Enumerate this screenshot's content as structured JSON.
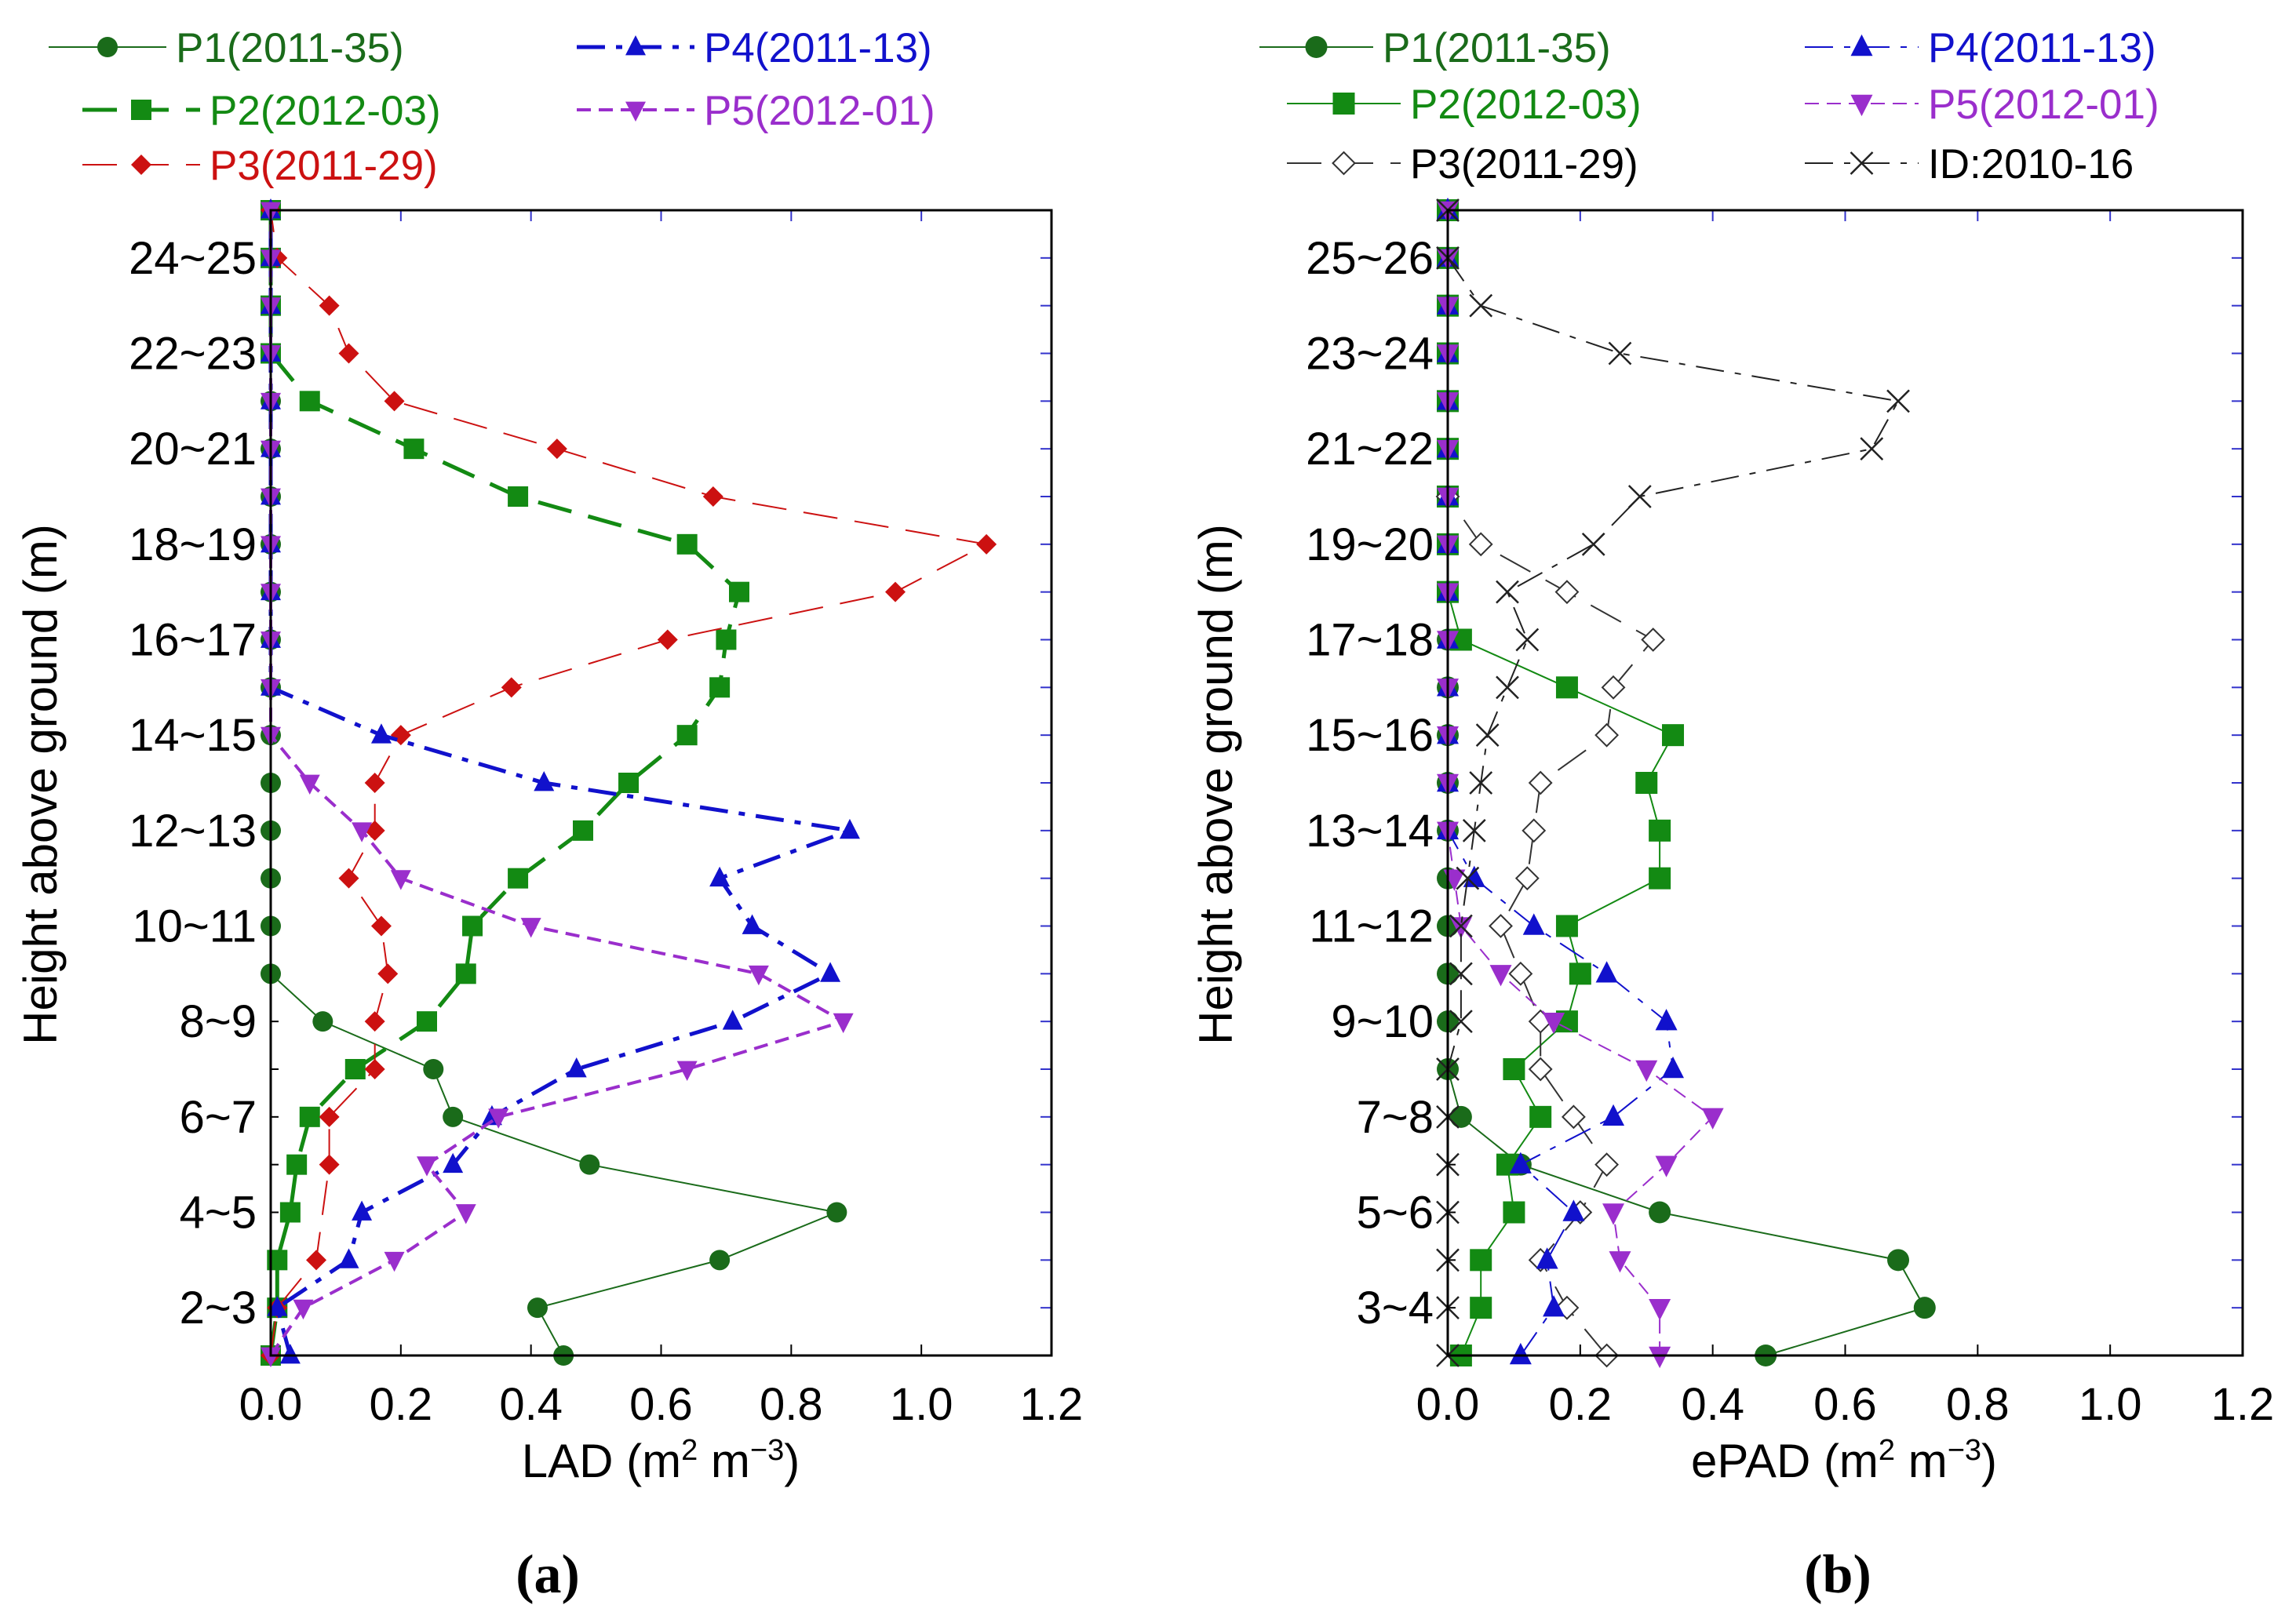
{
  "figure": {
    "panel_a_label": "(a)",
    "panel_b_label": "(b)"
  },
  "chart_data": [
    {
      "type": "line",
      "panel": "a",
      "title": "",
      "xlabel": "LAD (m",
      "xlabel_sup1": "2",
      "xlabel_mid": " m",
      "xlabel_sup2": "−3",
      "xlabel_end": ")",
      "ylabel": "Height above ground (m)",
      "xlim": [
        0,
        1.2
      ],
      "ylim": [
        1,
        25
      ],
      "x_ticks": [
        0,
        0.2,
        0.4,
        0.6,
        0.8,
        1.0,
        1.2
      ],
      "x_tick_labels": [
        "0.0",
        "0.2",
        "0.4",
        "0.6",
        "0.8",
        "1.0",
        "1.2"
      ],
      "y_ticks": [
        2,
        4,
        6,
        8,
        10,
        12,
        14,
        16,
        18,
        20,
        22,
        24
      ],
      "y_tick_labels": [
        "2~3",
        "4~5",
        "6~7",
        "8~9",
        "10~11",
        "12~13",
        "14~15",
        "16~17",
        "18~19",
        "20~21",
        "22~23",
        "24~25"
      ],
      "legend_position": "top",
      "series": [
        {
          "name": "P1(2011-35)",
          "color": "#1a6b1a",
          "marker": "circle",
          "dash": "solid",
          "width": 2,
          "x": [
            0.45,
            0.41,
            0.69,
            0.87,
            0.49,
            0.28,
            0.25,
            0.08,
            0,
            0,
            0,
            0,
            0,
            0,
            0,
            0,
            0,
            0,
            0,
            0,
            0,
            0,
            0,
            0,
            0
          ],
          "y": [
            1,
            2,
            3,
            4,
            5,
            6,
            7,
            8,
            9,
            10,
            11,
            12,
            13,
            14,
            15,
            16,
            17,
            18,
            19,
            20,
            21,
            22,
            23,
            24,
            25
          ]
        },
        {
          "name": "P2(2012-03)",
          "color": "#138a13",
          "marker": "square",
          "dash": "longdash",
          "width": 5,
          "x": [
            0,
            0.01,
            0.01,
            0.03,
            0.04,
            0.06,
            0.13,
            0.24,
            0.3,
            0.31,
            0.38,
            0.48,
            0.55,
            0.64,
            0.69,
            0.7,
            0.72,
            0.64,
            0.38,
            0.22,
            0.06,
            0,
            0,
            0,
            0
          ],
          "y": [
            1,
            2,
            3,
            4,
            5,
            6,
            7,
            8,
            9,
            10,
            11,
            12,
            13,
            14,
            15,
            16,
            17,
            18,
            19,
            20,
            21,
            22,
            23,
            24,
            25
          ]
        },
        {
          "name": "P3(2011-29)",
          "color": "#cc1111",
          "marker": "diamond",
          "dash": "longdash",
          "width": 2,
          "x": [
            0,
            0.01,
            0.07,
            0.09,
            0.09,
            0.16,
            0.16,
            0.18,
            0.17,
            0.12,
            0.16,
            0.16,
            0.2,
            0.37,
            0.61,
            0.96,
            1.1,
            0.68,
            0.44,
            0.19,
            0.12,
            0.09,
            0.01,
            0
          ],
          "y": [
            1,
            2,
            3,
            5,
            6,
            7,
            8,
            9,
            10,
            11,
            12,
            13,
            14,
            15,
            16,
            17,
            18,
            19,
            20,
            21,
            22,
            23,
            24,
            25
          ]
        },
        {
          "name": "P4(2011-13)",
          "color": "#1111cc",
          "marker": "triangle-up",
          "dash": "dashdot",
          "width": 5,
          "x": [
            0.03,
            0.01,
            0.12,
            0.14,
            0.28,
            0.34,
            0.47,
            0.71,
            0.86,
            0.74,
            0.69,
            0.89,
            0.42,
            0.17,
            0,
            0,
            0,
            0,
            0,
            0,
            0,
            0,
            0,
            0,
            0
          ],
          "y": [
            1,
            2,
            3,
            4,
            5,
            6,
            7,
            8,
            9,
            10,
            11,
            12,
            13,
            14,
            15,
            16,
            17,
            18,
            19,
            20,
            21,
            22,
            23,
            24,
            25
          ]
        },
        {
          "name": "P5(2012-01)",
          "color": "#9a2ecc",
          "marker": "triangle-down",
          "dash": "shortdash",
          "width": 4,
          "x": [
            0,
            0.05,
            0.19,
            0.3,
            0.24,
            0.35,
            0.64,
            0.88,
            0.75,
            0.4,
            0.2,
            0.14,
            0.06,
            0,
            0,
            0,
            0,
            0,
            0,
            0,
            0,
            0,
            0,
            0,
            0
          ],
          "y": [
            1,
            2,
            3,
            4,
            5,
            6,
            7,
            8,
            9,
            10,
            11,
            12,
            13,
            14,
            15,
            16,
            17,
            18,
            19,
            20,
            21,
            22,
            23,
            24,
            25
          ]
        }
      ]
    },
    {
      "type": "line",
      "panel": "b",
      "title": "",
      "xlabel": "ePAD (m",
      "xlabel_sup1": "2",
      "xlabel_mid": " m",
      "xlabel_sup2": "−3",
      "xlabel_end": ")",
      "ylabel": "Height above ground (m)",
      "xlim": [
        0,
        1.2
      ],
      "ylim": [
        2,
        26
      ],
      "x_ticks": [
        0,
        0.2,
        0.4,
        0.6,
        0.8,
        1.0,
        1.2
      ],
      "x_tick_labels": [
        "0.0",
        "0.2",
        "0.4",
        "0.6",
        "0.8",
        "1.0",
        "1.2"
      ],
      "y_ticks": [
        3,
        5,
        7,
        9,
        11,
        13,
        15,
        17,
        19,
        21,
        23,
        25
      ],
      "y_tick_labels": [
        "3~4",
        "5~6",
        "7~8",
        "9~10",
        "11~12",
        "13~14",
        "15~16",
        "17~18",
        "19~20",
        "21~22",
        "23~24",
        "25~26"
      ],
      "legend_position": "top",
      "series": [
        {
          "name": "P1(2011-35)",
          "color": "#1a6b1a",
          "marker": "circle",
          "dash": "solid",
          "width": 2,
          "x": [
            0.48,
            0.72,
            0.68,
            0.32,
            0.11,
            0.02,
            0,
            0,
            0,
            0,
            0,
            0,
            0,
            0,
            0,
            0,
            0,
            0,
            0,
            0,
            0,
            0,
            0,
            0,
            0
          ],
          "y": [
            2,
            3,
            4,
            5,
            6,
            7,
            8,
            9,
            10,
            11,
            12,
            13,
            14,
            15,
            16,
            17,
            18,
            19,
            20,
            21,
            22,
            23,
            24,
            25,
            26
          ]
        },
        {
          "name": "P2(2012-03)",
          "color": "#138a13",
          "marker": "square",
          "dash": "solid",
          "width": 2,
          "x": [
            0.02,
            0.05,
            0.05,
            0.1,
            0.09,
            0.14,
            0.1,
            0.18,
            0.2,
            0.18,
            0.32,
            0.32,
            0.3,
            0.34,
            0.18,
            0.02,
            0,
            0,
            0,
            0,
            0,
            0,
            0,
            0,
            0
          ],
          "y": [
            2,
            3,
            4,
            5,
            6,
            7,
            8,
            9,
            10,
            11,
            12,
            13,
            14,
            15,
            16,
            17,
            18,
            19,
            20,
            21,
            22,
            23,
            24,
            25,
            26
          ]
        },
        {
          "name": "P3(2011-29)",
          "color": "#333333",
          "marker": "diamond-open",
          "dash": "longdash",
          "width": 2,
          "x": [
            0.24,
            0.18,
            0.14,
            0.2,
            0.24,
            0.19,
            0.14,
            0.14,
            0.11,
            0.08,
            0.12,
            0.13,
            0.14,
            0.24,
            0.25,
            0.31,
            0.18,
            0.05,
            0
          ],
          "y": [
            2,
            3,
            4,
            5,
            6,
            7,
            8,
            9,
            10,
            11,
            12,
            13,
            14,
            15,
            16,
            17,
            18,
            19,
            20
          ]
        },
        {
          "name": "P4(2011-13)",
          "color": "#1111cc",
          "marker": "triangle-up",
          "dash": "dashdot",
          "width": 2,
          "x": [
            0.11,
            0.16,
            0.15,
            0.19,
            0.11,
            0.25,
            0.34,
            0.33,
            0.24,
            0.13,
            0.04,
            0,
            0,
            0,
            0,
            0,
            0,
            0,
            0,
            0,
            0,
            0,
            0,
            0,
            0
          ],
          "y": [
            2,
            3,
            4,
            5,
            6,
            7,
            8,
            9,
            10,
            11,
            12,
            13,
            14,
            15,
            16,
            17,
            18,
            19,
            20,
            21,
            22,
            23,
            24,
            25,
            26
          ]
        },
        {
          "name": "P5(2012-01)",
          "color": "#9a2ecc",
          "marker": "triangle-down",
          "dash": "shortdash",
          "width": 2,
          "x": [
            0.32,
            0.32,
            0.26,
            0.25,
            0.33,
            0.4,
            0.3,
            0.16,
            0.08,
            0.02,
            0.01,
            0,
            0,
            0,
            0,
            0,
            0,
            0,
            0,
            0,
            0,
            0,
            0,
            0,
            0
          ],
          "y": [
            2,
            3,
            4,
            5,
            6,
            7,
            8,
            9,
            10,
            11,
            12,
            13,
            14,
            15,
            16,
            17,
            18,
            19,
            20,
            21,
            22,
            23,
            24,
            25,
            26
          ]
        },
        {
          "name": "ID:2010-16",
          "color": "#222222",
          "marker": "x",
          "dash": "dashdot",
          "width": 2,
          "x": [
            0,
            0,
            0,
            0,
            0,
            0,
            0,
            0.02,
            0.02,
            0.02,
            0.03,
            0.04,
            0.05,
            0.06,
            0.09,
            0.12,
            0.09,
            0.22,
            0.29,
            0.64,
            0.68,
            0.26,
            0.05,
            0,
            0
          ],
          "y": [
            2,
            3,
            4,
            5,
            6,
            7,
            8,
            9,
            10,
            11,
            12,
            13,
            14,
            15,
            16,
            17,
            18,
            19,
            20,
            21,
            22,
            23,
            24,
            25,
            26
          ]
        }
      ]
    }
  ]
}
